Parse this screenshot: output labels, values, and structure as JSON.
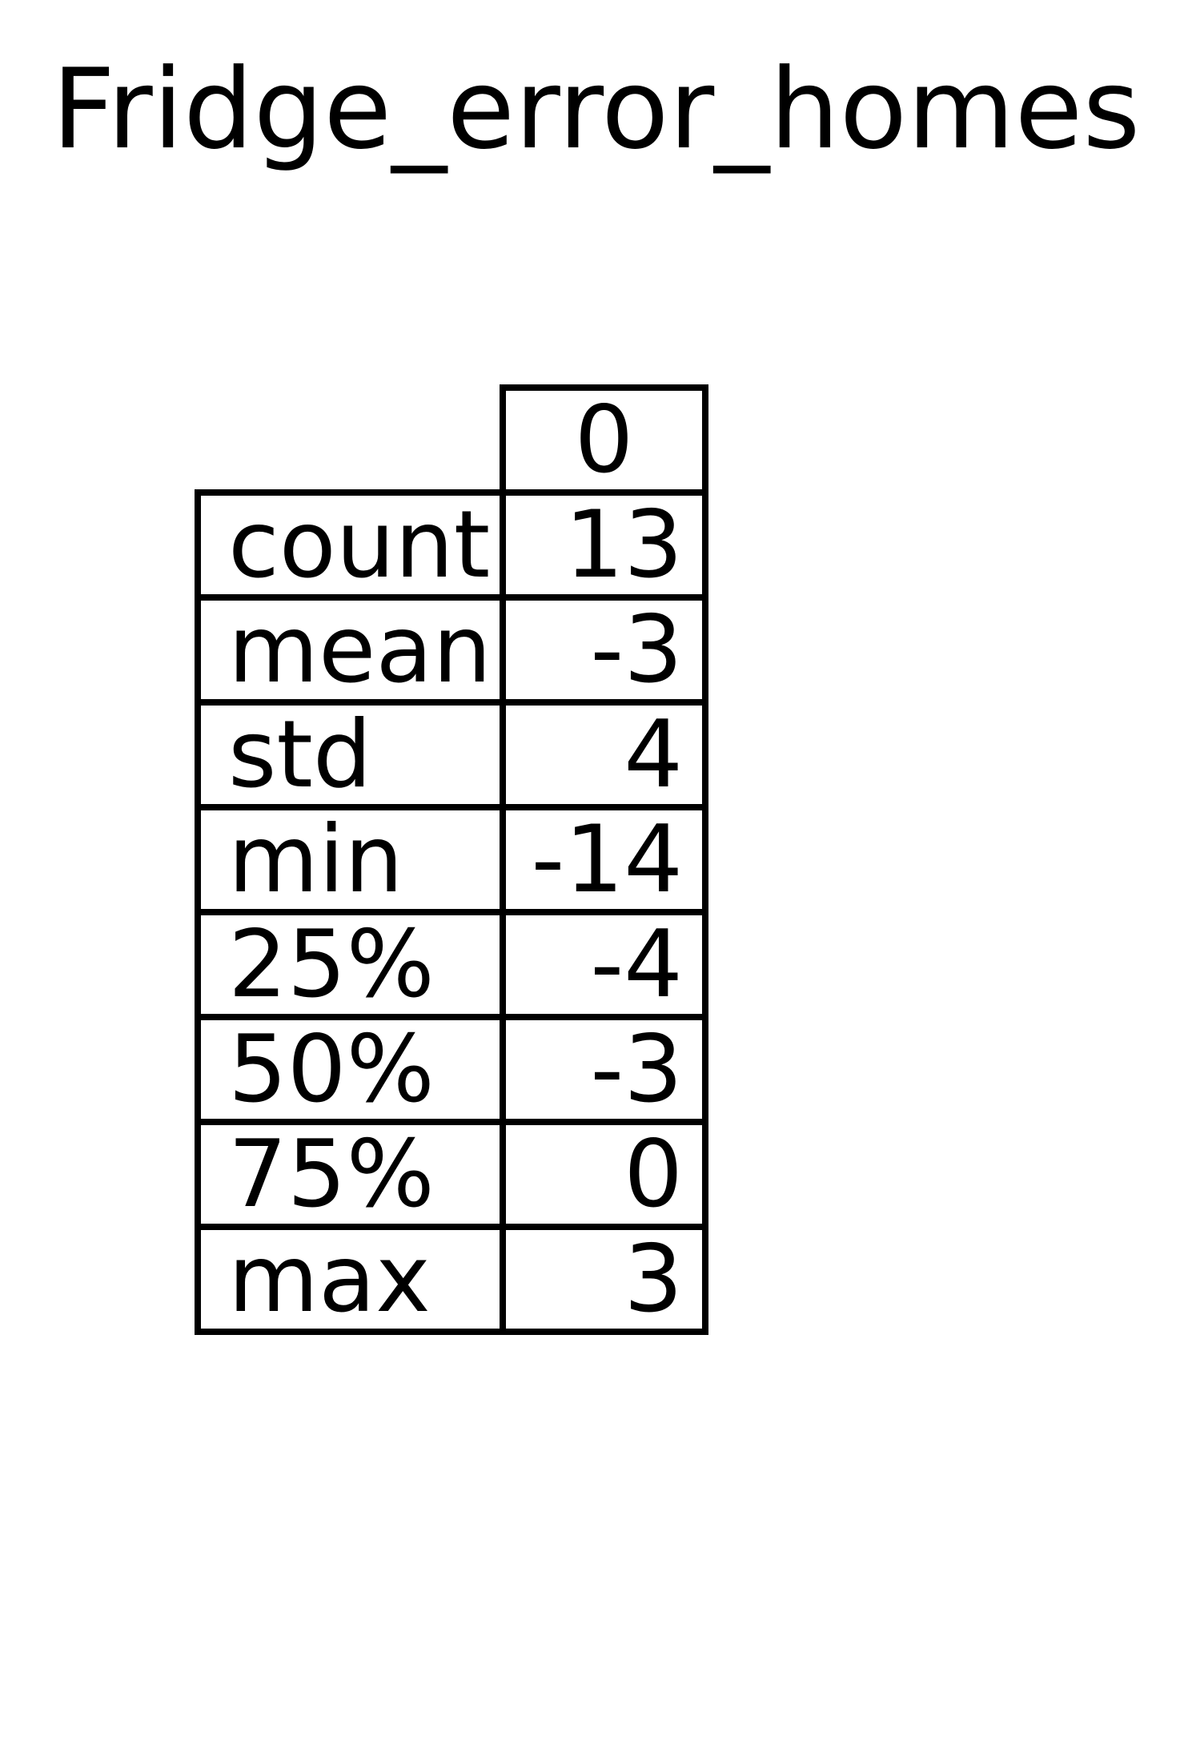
{
  "chart_data": {
    "type": "table",
    "title": "Fridge_error_homes",
    "columns": [
      "0"
    ],
    "rows": [
      {
        "label": "count",
        "value": "13"
      },
      {
        "label": "mean",
        "value": "-3"
      },
      {
        "label": "std",
        "value": "4"
      },
      {
        "label": "min",
        "value": "-14"
      },
      {
        "label": "25%",
        "value": "-4"
      },
      {
        "label": "50%",
        "value": "-3"
      },
      {
        "label": "75%",
        "value": "0"
      },
      {
        "label": "max",
        "value": "3"
      }
    ]
  }
}
